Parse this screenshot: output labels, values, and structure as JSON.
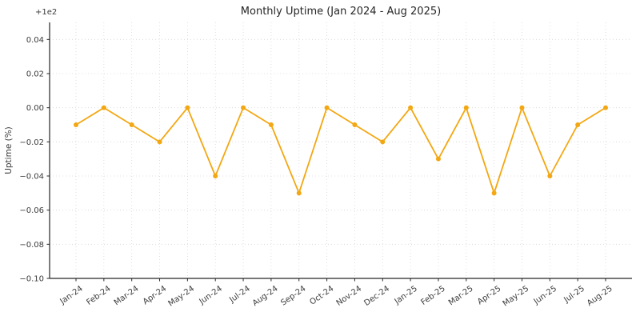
{
  "chart_data": {
    "type": "line",
    "title": "Monthly Uptime (Jan 2024 - Aug 2025)",
    "xlabel": "",
    "ylabel": "Uptime (%)",
    "offset_label": "+1e2",
    "categories": [
      "Jan-24",
      "Feb-24",
      "Mar-24",
      "Apr-24",
      "May-24",
      "Jun-24",
      "Jul-24",
      "Aug-24",
      "Sep-24",
      "Oct-24",
      "Nov-24",
      "Dec-24",
      "Jan-25",
      "Feb-25",
      "Mar-25",
      "Apr-25",
      "May-25",
      "Jun-25",
      "Jul-25",
      "Aug-25"
    ],
    "series": [
      {
        "name": "Uptime (%)",
        "values": [
          99.99,
          100.0,
          99.99,
          99.98,
          100.0,
          99.96,
          100.0,
          99.99,
          99.95,
          100.0,
          99.99,
          99.98,
          100.0,
          99.97,
          100.0,
          99.95,
          100.0,
          99.96,
          99.99,
          100.0
        ]
      }
    ],
    "ylim": [
      99.9,
      100.05
    ],
    "yticks": [
      100.04,
      100.02,
      100.0,
      99.98,
      99.96,
      99.94,
      99.92,
      99.9
    ],
    "ytick_labels": [
      "0.04",
      "0.02",
      "0.00",
      "−0.02",
      "−0.04",
      "−0.06",
      "−0.08",
      "−0.10"
    ],
    "grid": true,
    "grid_style": "dotted",
    "legend_position": "none",
    "marker": "circle"
  },
  "colors": {
    "line": "#f3a712",
    "marker": "#f3a712",
    "grid": "#d6d6d6",
    "axis": "#262626",
    "text": "#3a3a3a",
    "background": "#ffffff"
  }
}
